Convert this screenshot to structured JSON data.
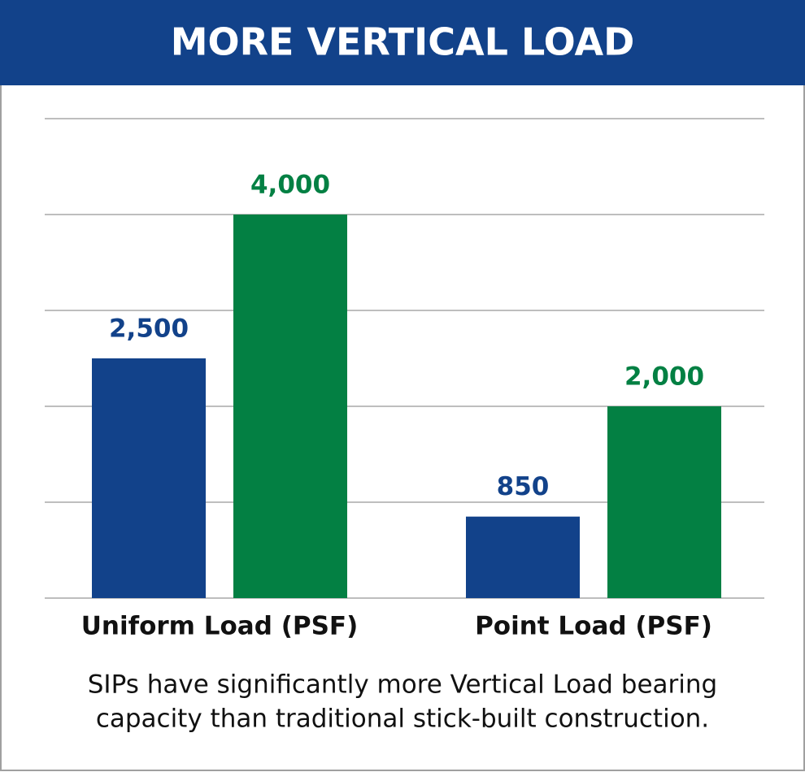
{
  "chart_data": {
    "type": "bar",
    "title": "MORE VERTICAL LOAD",
    "categories": [
      "Uniform Load (PSF)",
      "Point Load (PSF)"
    ],
    "series": [
      {
        "color": "#12428a",
        "values": [
          2500,
          850
        ],
        "value_labels": [
          "2,500",
          "850"
        ]
      },
      {
        "color": "#038043",
        "values": [
          4000,
          2000
        ],
        "value_labels": [
          "4,000",
          "2,000"
        ]
      }
    ],
    "ylim": [
      0,
      5000
    ],
    "yticks": [
      0,
      1000,
      2000,
      3000,
      4000,
      5000
    ],
    "grid": true,
    "caption": [
      "SIPs have significantly more Vertical Load bearing",
      "capacity than traditional stick-built construction."
    ]
  }
}
